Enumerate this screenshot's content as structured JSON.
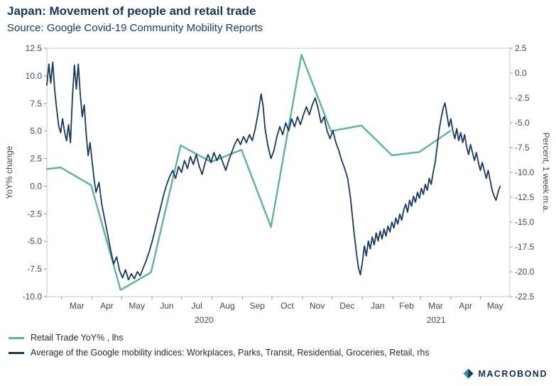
{
  "chart_data": {
    "type": "line",
    "title": "Japan: Movement of people and retail trade",
    "subtitle": "Source: Google Covid-19 Community Mobility Reports",
    "grid": false,
    "legend_position": "bottom-left",
    "x_axis": {
      "span_days": 471,
      "month_labels": [
        "Mar",
        "Apr",
        "May",
        "Jun",
        "Jul",
        "Aug",
        "Sep",
        "Oct",
        "Nov",
        "Dec",
        "Jan",
        "Feb",
        "Mar",
        "Apr",
        "May"
      ],
      "month_label_days": [
        30.5,
        61,
        91.5,
        122,
        152.5,
        183.5,
        214,
        244.5,
        275,
        305.5,
        336.5,
        366,
        395.5,
        426,
        456
      ],
      "month_boundary_days": [
        15,
        46,
        76,
        107,
        137,
        168,
        199,
        229,
        260,
        290,
        321,
        352,
        380,
        411,
        441
      ],
      "years": [
        {
          "label": "2020",
          "center_day": 160
        },
        {
          "label": "2021",
          "center_day": 396
        }
      ]
    },
    "left_axis": {
      "title": "YoY% change",
      "min": -10.0,
      "max": 12.5,
      "ticks": [
        12.5,
        10.0,
        7.5,
        5.0,
        2.5,
        0.0,
        -2.5,
        -5.0,
        -7.5,
        -10.0
      ]
    },
    "right_axis": {
      "title": "Percent, 1 week m.a.",
      "min": -22.5,
      "max": 2.5,
      "ticks": [
        2.5,
        0.0,
        -2.5,
        -5.0,
        -7.5,
        -10.0,
        -12.5,
        -15.0,
        -17.5,
        -20.0,
        -22.5
      ]
    },
    "series": [
      {
        "id": "retail-trade-line",
        "name": "Retail Trade YoY% , lhs",
        "axis": "left",
        "color": "#5eb2a0",
        "line_width": 2.4,
        "months": [
          "Jan 2020",
          "Feb 2020",
          "Mar 2020",
          "Apr 2020",
          "May 2020",
          "Jun 2020",
          "Jul 2020",
          "Aug 2020",
          "Sep 2020",
          "Oct 2020",
          "Nov 2020",
          "Dec 2020",
          "Jan 2021",
          "Feb 2021",
          "Mar 2021"
        ],
        "values": [
          1.4,
          1.7,
          0.1,
          -9.4,
          -7.8,
          3.7,
          2.2,
          3.3,
          -3.7,
          11.9,
          5.0,
          5.5,
          2.8,
          3.1,
          5.0
        ],
        "point_days": [
          -15,
          14,
          45,
          75,
          106,
          136,
          167,
          198,
          228,
          259,
          289,
          320,
          351,
          379,
          410
        ]
      },
      {
        "id": "mobility-average-line",
        "name": "Average of the Google mobility indices: Workplaces, Parks, Transit, Residential, Groceries, Retail, rhs",
        "axis": "right",
        "color": "#16395f",
        "line_width": 1.8,
        "points": [
          [
            0,
            -1.2
          ],
          [
            2,
            0.9
          ],
          [
            4,
            -1.0
          ],
          [
            6,
            1.1
          ],
          [
            8,
            -1.8
          ],
          [
            10,
            -3.6
          ],
          [
            12,
            -5.3
          ],
          [
            14,
            -6.0
          ],
          [
            16,
            -4.6
          ],
          [
            18,
            -5.9
          ],
          [
            20,
            -6.8
          ],
          [
            22,
            -5.2
          ],
          [
            24,
            -7.0
          ],
          [
            26,
            -2.4
          ],
          [
            28,
            0.8
          ],
          [
            30,
            -1.6
          ],
          [
            32,
            0.9
          ],
          [
            34,
            -2.2
          ],
          [
            36,
            -4.4
          ],
          [
            38,
            -3.2
          ],
          [
            40,
            -6.1
          ],
          [
            42,
            -8.3
          ],
          [
            44,
            -7.0
          ],
          [
            46,
            -8.9
          ],
          [
            48,
            -10.6
          ],
          [
            50,
            -12.0
          ],
          [
            53,
            -11.0
          ],
          [
            56,
            -13.3
          ],
          [
            59,
            -14.8
          ],
          [
            62,
            -16.3
          ],
          [
            65,
            -17.9
          ],
          [
            68,
            -19.2
          ],
          [
            71,
            -18.5
          ],
          [
            74,
            -19.9
          ],
          [
            77,
            -20.6
          ],
          [
            80,
            -19.8
          ],
          [
            83,
            -20.8
          ],
          [
            86,
            -20.2
          ],
          [
            89,
            -20.7
          ],
          [
            92,
            -20.0
          ],
          [
            95,
            -20.4
          ],
          [
            98,
            -19.6
          ],
          [
            101,
            -18.9
          ],
          [
            104,
            -18.0
          ],
          [
            107,
            -17.0
          ],
          [
            110,
            -15.8
          ],
          [
            113,
            -14.6
          ],
          [
            116,
            -13.4
          ],
          [
            119,
            -12.2
          ],
          [
            122,
            -11.2
          ],
          [
            125,
            -10.4
          ],
          [
            128,
            -9.8
          ],
          [
            131,
            -10.6
          ],
          [
            134,
            -9.4
          ],
          [
            137,
            -10.0
          ],
          [
            140,
            -8.8
          ],
          [
            143,
            -9.6
          ],
          [
            146,
            -8.4
          ],
          [
            149,
            -9.2
          ],
          [
            152,
            -8.2
          ],
          [
            155,
            -9.4
          ],
          [
            158,
            -10.2
          ],
          [
            161,
            -9.0
          ],
          [
            164,
            -8.2
          ],
          [
            167,
            -9.0
          ],
          [
            170,
            -8.0
          ],
          [
            173,
            -8.8
          ],
          [
            176,
            -8.2
          ],
          [
            179,
            -9.0
          ],
          [
            182,
            -9.8
          ],
          [
            185,
            -8.8
          ],
          [
            188,
            -8.0
          ],
          [
            191,
            -7.2
          ],
          [
            194,
            -6.6
          ],
          [
            197,
            -7.2
          ],
          [
            200,
            -6.4
          ],
          [
            203,
            -7.0
          ],
          [
            206,
            -6.2
          ],
          [
            209,
            -6.8
          ],
          [
            212,
            -5.6
          ],
          [
            215,
            -4.0
          ],
          [
            218,
            -2.1
          ],
          [
            220,
            -3.3
          ],
          [
            222,
            -5.6
          ],
          [
            225,
            -7.4
          ],
          [
            228,
            -8.6
          ],
          [
            231,
            -7.8
          ],
          [
            234,
            -6.4
          ],
          [
            237,
            -5.4
          ],
          [
            240,
            -6.2
          ],
          [
            243,
            -5.0
          ],
          [
            246,
            -5.8
          ],
          [
            249,
            -4.6
          ],
          [
            252,
            -5.4
          ],
          [
            255,
            -4.4
          ],
          [
            258,
            -5.2
          ],
          [
            261,
            -4.2
          ],
          [
            264,
            -3.4
          ],
          [
            267,
            -4.2
          ],
          [
            270,
            -3.2
          ],
          [
            273,
            -2.5
          ],
          [
            276,
            -3.6
          ],
          [
            279,
            -5.0
          ],
          [
            282,
            -4.4
          ],
          [
            285,
            -5.8
          ],
          [
            288,
            -6.6
          ],
          [
            291,
            -5.8
          ],
          [
            294,
            -7.0
          ],
          [
            297,
            -7.8
          ],
          [
            300,
            -8.8
          ],
          [
            303,
            -9.6
          ],
          [
            306,
            -10.6
          ],
          [
            309,
            -12.6
          ],
          [
            312,
            -15.6
          ],
          [
            315,
            -18.2
          ],
          [
            317,
            -19.6
          ],
          [
            319,
            -20.3
          ],
          [
            321,
            -19.0
          ],
          [
            323,
            -17.4
          ],
          [
            325,
            -18.4
          ],
          [
            327,
            -16.9
          ],
          [
            329,
            -17.7
          ],
          [
            331,
            -16.5
          ],
          [
            333,
            -17.3
          ],
          [
            335,
            -16.1
          ],
          [
            337,
            -16.9
          ],
          [
            339,
            -15.9
          ],
          [
            341,
            -16.7
          ],
          [
            343,
            -15.7
          ],
          [
            345,
            -16.4
          ],
          [
            347,
            -15.4
          ],
          [
            349,
            -16.0
          ],
          [
            351,
            -15.0
          ],
          [
            353,
            -15.6
          ],
          [
            355,
            -14.6
          ],
          [
            357,
            -15.2
          ],
          [
            359,
            -14.2
          ],
          [
            361,
            -14.8
          ],
          [
            363,
            -13.8
          ],
          [
            365,
            -13.2
          ],
          [
            367,
            -14.0
          ],
          [
            369,
            -12.8
          ],
          [
            371,
            -13.4
          ],
          [
            373,
            -12.4
          ],
          [
            375,
            -13.0
          ],
          [
            377,
            -12.0
          ],
          [
            379,
            -12.6
          ],
          [
            381,
            -11.6
          ],
          [
            383,
            -12.2
          ],
          [
            385,
            -11.2
          ],
          [
            387,
            -11.8
          ],
          [
            389,
            -10.6
          ],
          [
            391,
            -11.2
          ],
          [
            393,
            -10.0
          ],
          [
            395,
            -9.0
          ],
          [
            397,
            -7.4
          ],
          [
            399,
            -5.8
          ],
          [
            401,
            -4.6
          ],
          [
            403,
            -3.6
          ],
          [
            405,
            -3.0
          ],
          [
            407,
            -4.2
          ],
          [
            409,
            -5.4
          ],
          [
            411,
            -4.6
          ],
          [
            413,
            -5.8
          ],
          [
            415,
            -6.6
          ],
          [
            417,
            -5.6
          ],
          [
            419,
            -6.8
          ],
          [
            421,
            -6.0
          ],
          [
            423,
            -7.0
          ],
          [
            425,
            -6.2
          ],
          [
            427,
            -7.4
          ],
          [
            429,
            -8.2
          ],
          [
            431,
            -7.2
          ],
          [
            433,
            -8.0
          ],
          [
            435,
            -8.8
          ],
          [
            437,
            -8.0
          ],
          [
            439,
            -9.0
          ],
          [
            441,
            -9.8
          ],
          [
            443,
            -9.0
          ],
          [
            445,
            -9.8
          ],
          [
            447,
            -10.6
          ],
          [
            449,
            -9.8
          ],
          [
            451,
            -10.8
          ],
          [
            453,
            -11.8
          ],
          [
            455,
            -12.4
          ],
          [
            457,
            -12.8
          ],
          [
            459,
            -12.0
          ],
          [
            461,
            -11.4
          ]
        ]
      }
    ]
  },
  "logo": {
    "text": "MACROBOND"
  }
}
